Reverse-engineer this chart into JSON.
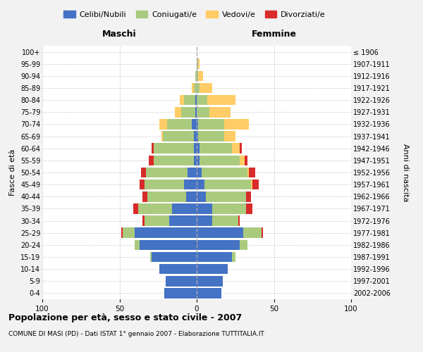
{
  "age_groups": [
    "0-4",
    "5-9",
    "10-14",
    "15-19",
    "20-24",
    "25-29",
    "30-34",
    "35-39",
    "40-44",
    "45-49",
    "50-54",
    "55-59",
    "60-64",
    "65-69",
    "70-74",
    "75-79",
    "80-84",
    "85-89",
    "90-94",
    "95-99",
    "100+"
  ],
  "birth_years": [
    "2002-2006",
    "1997-2001",
    "1992-1996",
    "1987-1991",
    "1982-1986",
    "1977-1981",
    "1972-1976",
    "1967-1971",
    "1962-1966",
    "1957-1961",
    "1952-1956",
    "1947-1951",
    "1942-1946",
    "1937-1941",
    "1932-1936",
    "1927-1931",
    "1922-1926",
    "1917-1921",
    "1912-1916",
    "1907-1911",
    "≤ 1906"
  ],
  "males": {
    "celibi": [
      21,
      20,
      24,
      29,
      37,
      40,
      18,
      16,
      7,
      8,
      6,
      2,
      2,
      2,
      3,
      1,
      1,
      0,
      0,
      0,
      0
    ],
    "coniugati": [
      0,
      0,
      0,
      1,
      3,
      8,
      16,
      22,
      25,
      26,
      27,
      26,
      26,
      20,
      16,
      9,
      7,
      2,
      1,
      0,
      0
    ],
    "vedovi": [
      0,
      0,
      0,
      0,
      0,
      0,
      0,
      0,
      0,
      0,
      0,
      0,
      0,
      1,
      5,
      4,
      3,
      1,
      0,
      0,
      0
    ],
    "divorziati": [
      0,
      0,
      0,
      0,
      0,
      1,
      1,
      3,
      3,
      3,
      3,
      3,
      1,
      0,
      0,
      0,
      0,
      0,
      0,
      0,
      0
    ]
  },
  "females": {
    "nubili": [
      16,
      17,
      20,
      23,
      28,
      30,
      10,
      10,
      6,
      5,
      3,
      2,
      2,
      1,
      1,
      0,
      0,
      0,
      0,
      0,
      0
    ],
    "coniugate": [
      0,
      0,
      0,
      2,
      5,
      12,
      17,
      22,
      26,
      30,
      30,
      26,
      21,
      17,
      17,
      8,
      7,
      2,
      1,
      1,
      0
    ],
    "vedove": [
      0,
      0,
      0,
      0,
      0,
      0,
      0,
      0,
      0,
      1,
      1,
      3,
      5,
      7,
      16,
      14,
      18,
      8,
      3,
      1,
      0
    ],
    "divorziate": [
      0,
      0,
      0,
      0,
      0,
      1,
      1,
      4,
      3,
      4,
      4,
      2,
      1,
      0,
      0,
      0,
      0,
      0,
      0,
      0,
      0
    ]
  },
  "colors": {
    "celibi_nubili": "#4472C4",
    "coniugati": "#AACB7E",
    "vedovi": "#FFCC66",
    "divorziati": "#D92B2B"
  },
  "xlim": [
    -100,
    100
  ],
  "xticks": [
    -100,
    -50,
    0,
    50,
    100
  ],
  "xticklabels": [
    "100",
    "50",
    "0",
    "50",
    "100"
  ],
  "title": "Popolazione per età, sesso e stato civile - 2007",
  "subtitle": "COMUNE DI MASI (PD) - Dati ISTAT 1° gennaio 2007 - Elaborazione TUTTITALIA.IT",
  "ylabel_left": "Fasce di età",
  "ylabel_right": "Anni di nascita",
  "label_maschi": "Maschi",
  "label_femmine": "Femmine",
  "legend_labels": [
    "Celibi/Nubili",
    "Coniugati/e",
    "Vedovi/e",
    "Divorziati/e"
  ],
  "bg_color": "#F2F2F2",
  "plot_bg_color": "#FFFFFF"
}
